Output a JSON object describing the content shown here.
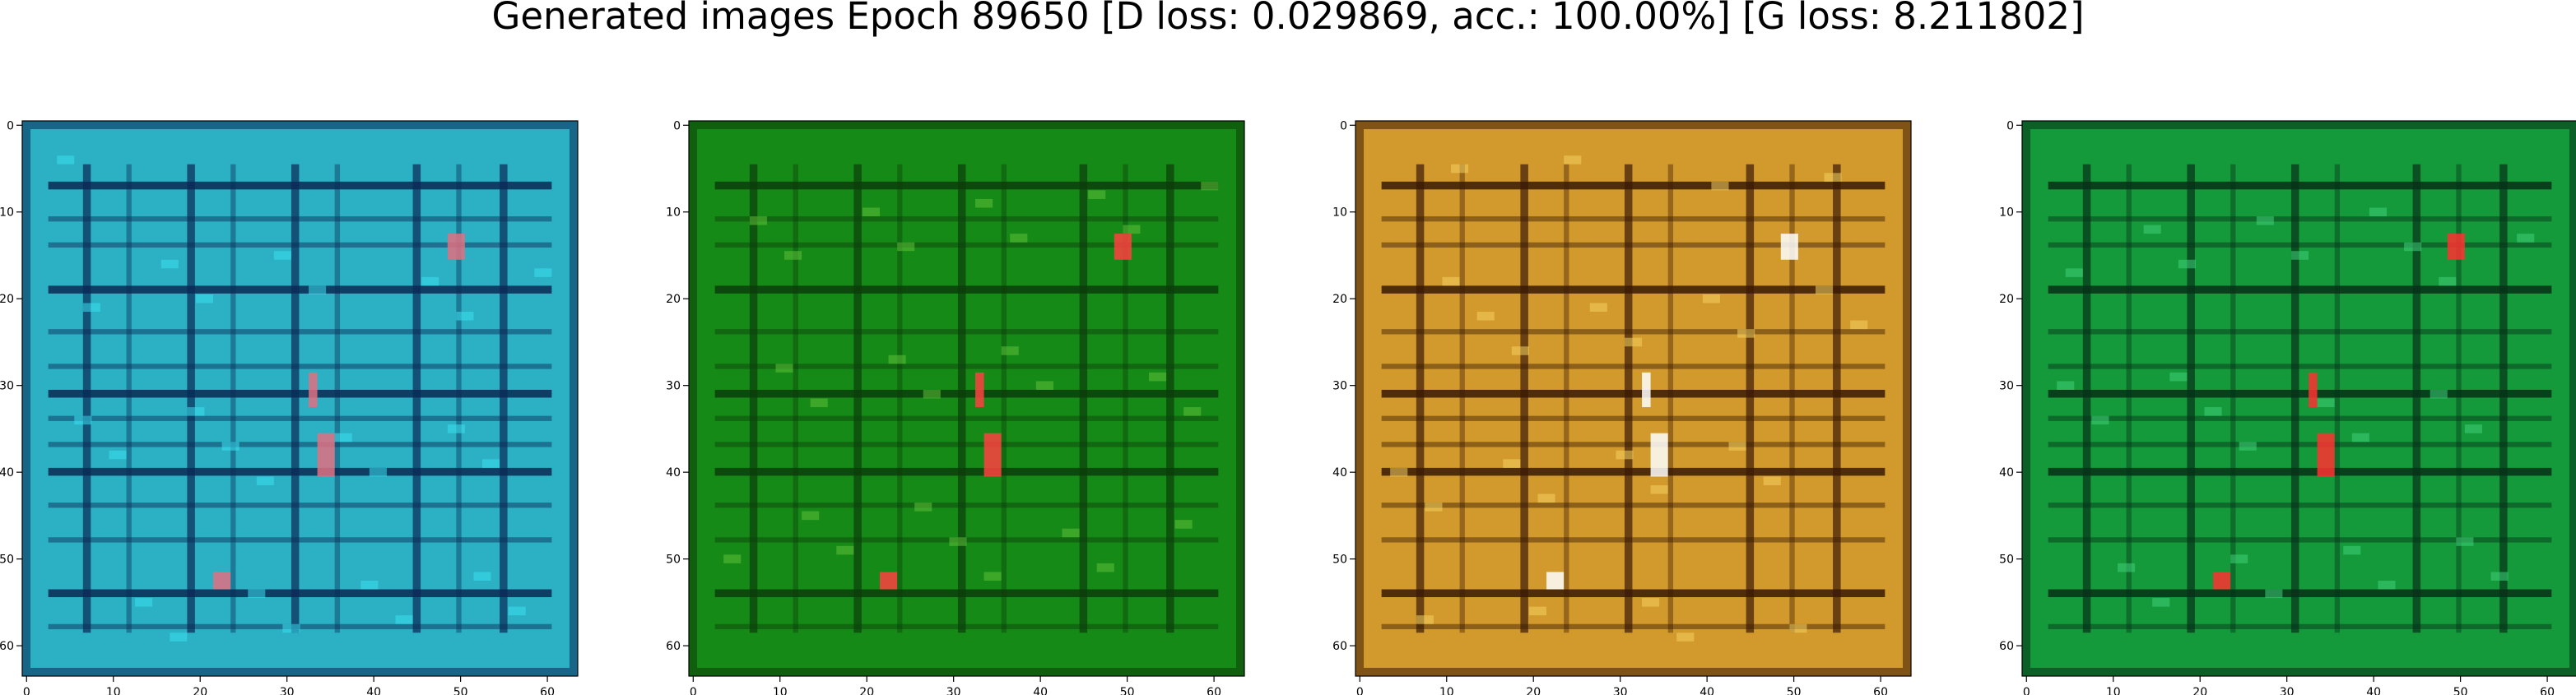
{
  "title": "Generated images Epoch 89650 [D loss: 0.029869, acc.: 100.00%] [G loss: 8.211802]",
  "panels": [
    {
      "name": "panel-1",
      "base": "#2bb0c4",
      "line": "#0a2a55",
      "accent": "#3be0f0",
      "spot": "#e07080"
    },
    {
      "name": "panel-2",
      "base": "#168a16",
      "line": "#0b3d0b",
      "accent": "#5fbf3a",
      "spot": "#ff4040"
    },
    {
      "name": "panel-3",
      "base": "#d29a2c",
      "line": "#3a1a05",
      "accent": "#f2d060",
      "spot": "#ffffff"
    },
    {
      "name": "panel-4",
      "base": "#149a3a",
      "line": "#063018",
      "accent": "#3fd07a",
      "spot": "#ff3030"
    }
  ],
  "axis": {
    "x_ticks": [
      "0",
      "10",
      "20",
      "30",
      "40",
      "50",
      "60"
    ],
    "y_ticks": [
      "0",
      "10",
      "20",
      "30",
      "40",
      "50",
      "60"
    ],
    "range": [
      0,
      63
    ]
  }
}
